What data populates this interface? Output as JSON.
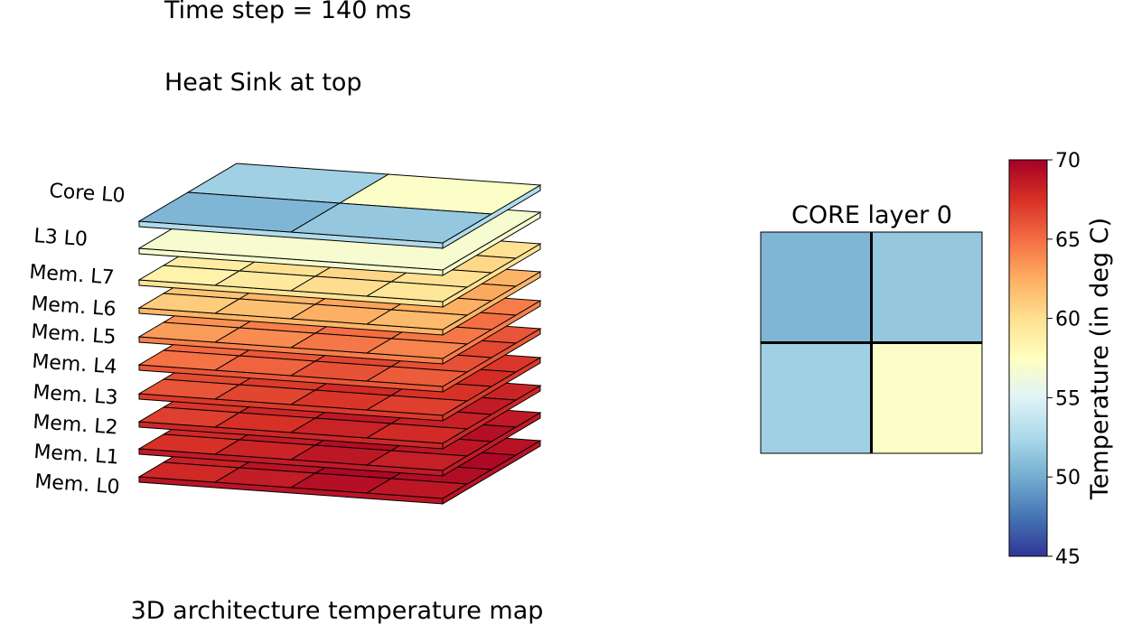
{
  "header": {
    "time_step": "Time step = 140 ms",
    "heat_sink": "Heat Sink at top"
  },
  "footer": {
    "caption": "3D architecture temperature map"
  },
  "chart_data": [
    {
      "type": "heatmap",
      "title": "3D architecture temperature map",
      "view": "3d-stacked",
      "layers": [
        {
          "label": "Core  L0",
          "values": [
            [
              50.5,
              51.5
            ],
            [
              52.0,
              57.2
            ]
          ]
        },
        {
          "label": "L3 L0",
          "values": [
            [
              56.8
            ]
          ]
        },
        {
          "label": "Mem. L7",
          "values": [
            [
              58.5,
              59.2,
              60.1,
              59.5
            ],
            [
              59.0,
              59.8,
              60.5,
              59.9
            ],
            [
              59.3,
              60.2,
              60.9,
              60.4
            ],
            [
              58.8,
              59.6,
              60.4,
              59.8
            ]
          ]
        },
        {
          "label": "Mem. L6",
          "values": [
            [
              61.0,
              61.6,
              62.4,
              61.9
            ],
            [
              61.4,
              62.1,
              62.9,
              62.4
            ],
            [
              61.7,
              62.5,
              63.2,
              62.7
            ],
            [
              61.2,
              61.9,
              62.7,
              62.2
            ]
          ]
        },
        {
          "label": "Mem. L5",
          "values": [
            [
              63.2,
              63.8,
              64.6,
              64.1
            ],
            [
              63.6,
              64.3,
              65.0,
              64.6
            ],
            [
              63.9,
              64.7,
              65.4,
              64.9
            ],
            [
              63.4,
              64.1,
              64.9,
              64.4
            ]
          ]
        },
        {
          "label": "Mem. L4",
          "values": [
            [
              64.8,
              65.4,
              66.1,
              65.7
            ],
            [
              65.2,
              65.9,
              66.6,
              66.2
            ],
            [
              65.5,
              66.2,
              66.9,
              66.5
            ],
            [
              65.0,
              65.7,
              66.4,
              66.0
            ]
          ]
        },
        {
          "label": "Mem. L3",
          "values": [
            [
              66.0,
              66.6,
              67.3,
              66.9
            ],
            [
              66.4,
              67.1,
              67.8,
              67.4
            ],
            [
              66.7,
              67.4,
              68.1,
              67.7
            ],
            [
              66.2,
              66.9,
              67.6,
              67.2
            ]
          ]
        },
        {
          "label": "Mem. L2",
          "values": [
            [
              66.9,
              67.5,
              68.2,
              67.8
            ],
            [
              67.3,
              68.0,
              68.7,
              68.3
            ],
            [
              67.6,
              68.3,
              69.0,
              68.6
            ],
            [
              67.1,
              67.8,
              68.5,
              68.1
            ]
          ]
        },
        {
          "label": "Mem. L1",
          "values": [
            [
              67.5,
              68.1,
              68.8,
              68.4
            ],
            [
              67.9,
              68.6,
              69.3,
              68.9
            ],
            [
              68.2,
              68.9,
              69.6,
              69.2
            ],
            [
              67.7,
              68.4,
              69.1,
              68.7
            ]
          ]
        },
        {
          "label": "Mem. L0",
          "values": [
            [
              67.9,
              68.5,
              69.2,
              68.8
            ],
            [
              68.3,
              69.0,
              69.6,
              69.3
            ],
            [
              68.6,
              69.3,
              69.9,
              69.6
            ],
            [
              68.1,
              68.8,
              69.5,
              69.1
            ]
          ]
        }
      ]
    },
    {
      "type": "heatmap",
      "title": "CORE layer 0",
      "values": [
        [
          50.5,
          51.5
        ],
        [
          52.0,
          57.2
        ]
      ]
    },
    {
      "type": "colorbar",
      "label": "Temperature (in deg C)",
      "range": [
        45,
        70
      ],
      "ticks": [
        45,
        50,
        55,
        60,
        65,
        70
      ],
      "colormap": "RdYlBu_r",
      "colormap_stops": [
        "#313695",
        "#4575b4",
        "#74add1",
        "#abd9e9",
        "#e0f3f8",
        "#ffffbf",
        "#fee090",
        "#fdae61",
        "#f46d43",
        "#d73027",
        "#a50026"
      ]
    }
  ]
}
